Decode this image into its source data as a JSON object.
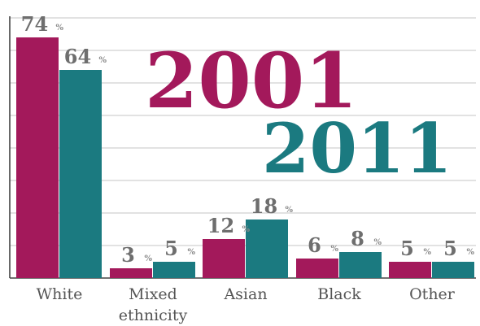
{
  "chart_data": {
    "type": "bar",
    "title": "",
    "categories": [
      "White",
      "Mixed ethnicity",
      "Asian",
      "Black",
      "Other"
    ],
    "category_lines": [
      [
        "White"
      ],
      [
        "Mixed",
        "ethnicity"
      ],
      [
        "Asian"
      ],
      [
        "Black"
      ],
      [
        "Other"
      ]
    ],
    "series": [
      {
        "name": "2001",
        "values": [
          74,
          3,
          12,
          6,
          5
        ],
        "color": "#a3195b"
      },
      {
        "name": "2011",
        "values": [
          64,
          5,
          18,
          8,
          5
        ],
        "color": "#1b7a80"
      }
    ],
    "value_suffix": "%",
    "ylim": [
      0,
      80
    ],
    "grid": true,
    "xlabel": "",
    "ylabel": ""
  }
}
